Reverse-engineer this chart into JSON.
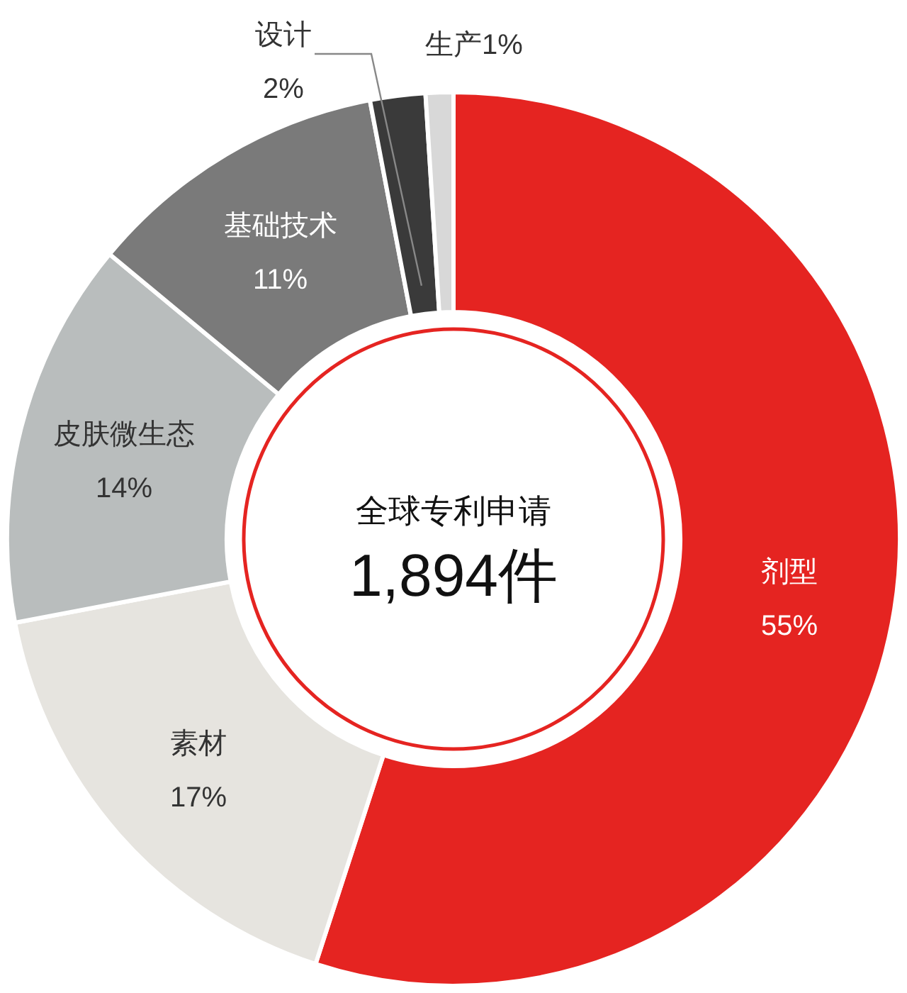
{
  "chart_data": {
    "type": "donut",
    "title": "全球专利申请",
    "subtitle": "1,894件",
    "categories": [
      "剂型",
      "素材",
      "皮肤微生态",
      "基础技术",
      "设计",
      "生产"
    ],
    "values": [
      55,
      17,
      14,
      11,
      2,
      1
    ],
    "colors": [
      "#e52421",
      "#e6e4df",
      "#b9bdbd",
      "#7a7a7a",
      "#3a3a3a",
      "#d8d8d8"
    ],
    "value_labels": [
      "55%",
      "17%",
      "14%",
      "11%",
      "2%",
      "1%"
    ]
  }
}
